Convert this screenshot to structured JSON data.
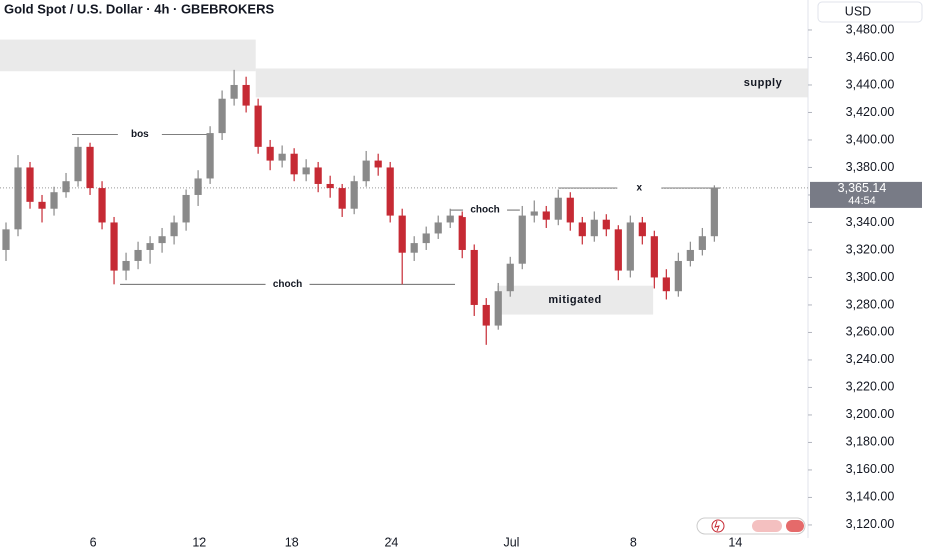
{
  "chart_data": {
    "type": "candlestick",
    "title": "Gold Spot / U.S. Dollar · 4h · GBEBROKERS",
    "currency": "USD",
    "up_color": "#8a8a8a",
    "down_color": "#c62a34",
    "xlim": [
      0,
      67.3
    ],
    "ylim": [
      3110.5,
      3501.8
    ],
    "yticks": [
      {
        "value": 3120,
        "label": "3,120.00"
      },
      {
        "value": 3140,
        "label": "3,140.00"
      },
      {
        "value": 3160,
        "label": "3,160.00"
      },
      {
        "value": 3180,
        "label": "3,180.00"
      },
      {
        "value": 3200,
        "label": "3,200.00"
      },
      {
        "value": 3220,
        "label": "3,220.00"
      },
      {
        "value": 3240,
        "label": "3,240.00"
      },
      {
        "value": 3260,
        "label": "3,260.00"
      },
      {
        "value": 3280,
        "label": "3,280.00"
      },
      {
        "value": 3300,
        "label": "3,300.00"
      },
      {
        "value": 3320,
        "label": "3,320.00"
      },
      {
        "value": 3340,
        "label": "3,340.00"
      },
      {
        "value": 3360,
        "label": "3,360.00"
      },
      {
        "value": 3380,
        "label": "3,380.00"
      },
      {
        "value": 3400,
        "label": "3,400.00"
      },
      {
        "value": 3420,
        "label": "3,420.00"
      },
      {
        "value": 3440,
        "label": "3,440.00"
      },
      {
        "value": 3460,
        "label": "3,460.00"
      },
      {
        "value": 3480,
        "label": "3,480.00"
      }
    ],
    "xticks": [
      {
        "value": 7.75,
        "label": "6"
      },
      {
        "value": 16.6,
        "label": "12"
      },
      {
        "value": 24.3,
        "label": "18"
      },
      {
        "value": 32.6,
        "label": "24"
      },
      {
        "value": 42.6,
        "label": "Jul"
      },
      {
        "value": 52.75,
        "label": "8"
      },
      {
        "value": 61.25,
        "label": "14"
      }
    ],
    "ohlc": [
      [
        3320,
        3340,
        3312,
        3335
      ],
      [
        3335,
        3389,
        3330,
        3380
      ],
      [
        3380,
        3384,
        3350,
        3355
      ],
      [
        3355,
        3360,
        3340,
        3350
      ],
      [
        3350,
        3366,
        3345,
        3362
      ],
      [
        3362,
        3376,
        3358,
        3370
      ],
      [
        3370,
        3402,
        3366,
        3395
      ],
      [
        3395,
        3398,
        3360,
        3365
      ],
      [
        3365,
        3370,
        3335,
        3340
      ],
      [
        3340,
        3344,
        3295,
        3305
      ],
      [
        3305,
        3318,
        3298,
        3312
      ],
      [
        3312,
        3326,
        3306,
        3320
      ],
      [
        3320,
        3330,
        3310,
        3325
      ],
      [
        3325,
        3336,
        3318,
        3330
      ],
      [
        3330,
        3345,
        3324,
        3340
      ],
      [
        3340,
        3364,
        3334,
        3360
      ],
      [
        3360,
        3378,
        3352,
        3372
      ],
      [
        3372,
        3410,
        3368,
        3405
      ],
      [
        3405,
        3436,
        3400,
        3430
      ],
      [
        3430,
        3451,
        3425,
        3440
      ],
      [
        3440,
        3446,
        3420,
        3425
      ],
      [
        3425,
        3430,
        3390,
        3395
      ],
      [
        3395,
        3400,
        3378,
        3385
      ],
      [
        3385,
        3396,
        3380,
        3390
      ],
      [
        3390,
        3394,
        3370,
        3375
      ],
      [
        3375,
        3386,
        3370,
        3380
      ],
      [
        3380,
        3384,
        3362,
        3368
      ],
      [
        3368,
        3374,
        3358,
        3365
      ],
      [
        3365,
        3368,
        3344,
        3350
      ],
      [
        3350,
        3374,
        3346,
        3370
      ],
      [
        3370,
        3392,
        3366,
        3385
      ],
      [
        3385,
        3390,
        3374,
        3380
      ],
      [
        3380,
        3384,
        3340,
        3345
      ],
      [
        3345,
        3350,
        3295,
        3318
      ],
      [
        3318,
        3330,
        3312,
        3325
      ],
      [
        3325,
        3337,
        3320,
        3332
      ],
      [
        3332,
        3345,
        3328,
        3340
      ],
      [
        3340,
        3350,
        3336,
        3345
      ],
      [
        3345,
        3348,
        3314,
        3320
      ],
      [
        3320,
        3324,
        3272,
        3280
      ],
      [
        3280,
        3285,
        3251,
        3265
      ],
      [
        3265,
        3296,
        3262,
        3290
      ],
      [
        3290,
        3315,
        3286,
        3310
      ],
      [
        3310,
        3352,
        3306,
        3345
      ],
      [
        3345,
        3356,
        3340,
        3348
      ],
      [
        3348,
        3352,
        3336,
        3342
      ],
      [
        3342,
        3364,
        3338,
        3358
      ],
      [
        3358,
        3362,
        3334,
        3340
      ],
      [
        3340,
        3344,
        3324,
        3330
      ],
      [
        3330,
        3348,
        3326,
        3342
      ],
      [
        3342,
        3346,
        3330,
        3335
      ],
      [
        3335,
        3338,
        3298,
        3305
      ],
      [
        3305,
        3345,
        3300,
        3340
      ],
      [
        3340,
        3344,
        3324,
        3330
      ],
      [
        3330,
        3334,
        3292,
        3300
      ],
      [
        3300,
        3306,
        3284,
        3290
      ],
      [
        3290,
        3318,
        3286,
        3312
      ],
      [
        3312,
        3326,
        3308,
        3320
      ],
      [
        3320,
        3336,
        3316,
        3330
      ],
      [
        3330,
        3367,
        3326,
        3365.14
      ]
    ],
    "zones": [
      {
        "x0": 0,
        "x1": 21.3,
        "y0": 3450,
        "y1": 3473
      },
      {
        "x0": 21.3,
        "x1": 67.3,
        "y0": 3431,
        "y1": 3452,
        "label": "supply"
      },
      {
        "x0": 41.4,
        "x1": 54.4,
        "y0": 3273,
        "y1": 3294,
        "label": "mitigated"
      }
    ],
    "levels": [
      {
        "x0": 6,
        "x1": 17.3,
        "y": 3404,
        "label": "bos"
      },
      {
        "x0": 10,
        "x1": 37.9,
        "y": 3295,
        "label": "choch"
      },
      {
        "x0": 37.5,
        "x1": 43.3,
        "y": 3349,
        "label": "choch"
      },
      {
        "x0": 46.5,
        "x1": 60,
        "y": 3365,
        "label": "x"
      }
    ],
    "last_price": {
      "value": 3365.14,
      "label": "3,365.14"
    },
    "countdown": "44:54"
  }
}
